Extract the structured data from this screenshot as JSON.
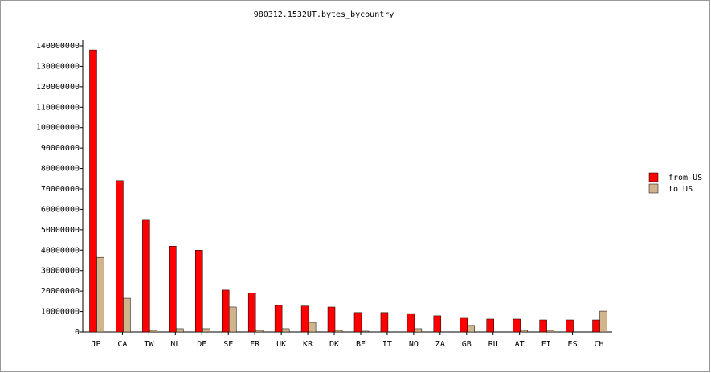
{
  "chart_data": {
    "type": "bar",
    "title": "980312.1532UT.bytes_bycountry",
    "categories": [
      "JP",
      "CA",
      "TW",
      "NL",
      "DE",
      "SE",
      "FR",
      "UK",
      "KR",
      "DK",
      "BE",
      "IT",
      "NO",
      "ZA",
      "GB",
      "RU",
      "AT",
      "FI",
      "ES",
      "CH"
    ],
    "series": [
      {
        "name": "from US",
        "color": "#ff0000",
        "values": [
          138000000,
          74000000,
          54700000,
          42000000,
          40000000,
          20500000,
          19000000,
          13000000,
          12700000,
          12200000,
          9500000,
          9500000,
          9000000,
          7900000,
          7100000,
          6300000,
          6300000,
          5900000,
          5900000,
          5900000
        ]
      },
      {
        "name": "to US",
        "color": "#d2b48c",
        "values": [
          36500000,
          16500000,
          800000,
          1600000,
          1600000,
          12200000,
          800000,
          1600000,
          4700000,
          800000,
          400000,
          0,
          1600000,
          0,
          3200000,
          0,
          800000,
          800000,
          0,
          10200000
        ]
      }
    ],
    "ylim": [
      0,
      140000000
    ],
    "yticks": [
      0,
      10000000,
      20000000,
      30000000,
      40000000,
      50000000,
      60000000,
      70000000,
      80000000,
      90000000,
      100000000,
      110000000,
      120000000,
      130000000,
      140000000
    ],
    "grid": false,
    "legend": "right"
  }
}
